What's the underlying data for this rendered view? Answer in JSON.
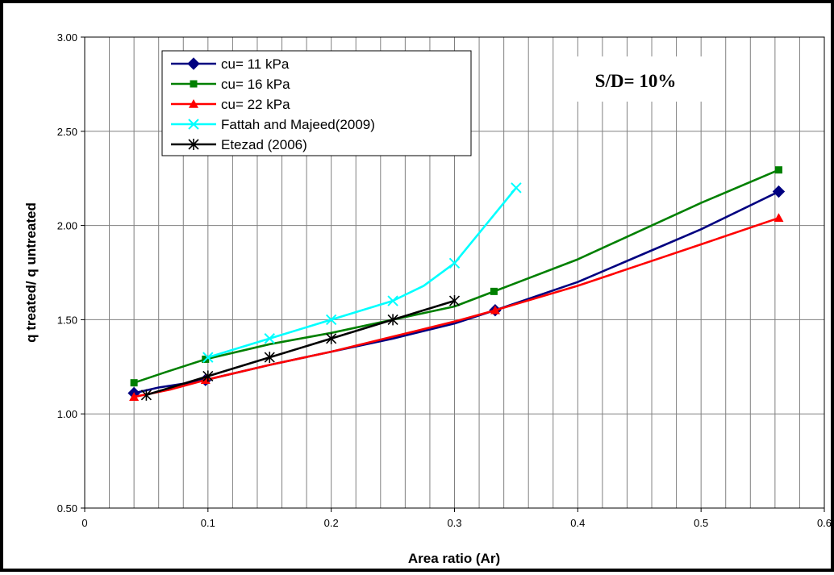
{
  "chart_data": {
    "type": "line",
    "title": "",
    "xlabel": "Area ratio (Ar)",
    "ylabel": "q treated/ q untreated",
    "xlim": [
      0,
      0.6
    ],
    "ylim": [
      0.5,
      3.0
    ],
    "x_ticks": [
      "0",
      "0.1",
      "0.2",
      "0.3",
      "0.4",
      "0.5",
      "0.6"
    ],
    "y_ticks": [
      "0.50",
      "1.00",
      "1.50",
      "2.00",
      "2.50",
      "3.00"
    ],
    "x_tick_values": [
      0,
      0.1,
      0.2,
      0.3,
      0.4,
      0.5,
      0.6
    ],
    "y_tick_values": [
      0.5,
      1.0,
      1.5,
      2.0,
      2.5,
      3.0
    ],
    "x_minor_step": 0.02,
    "grid": "on",
    "legend_position": "top-left",
    "annotation": "S/D= 10%",
    "series": [
      {
        "name": "cu= 11 kPa",
        "color": "#000080",
        "marker": "diamond",
        "points": [
          [
            0.04,
            1.11
          ],
          [
            0.098,
            1.18
          ],
          [
            0.333,
            1.55
          ],
          [
            0.563,
            2.18
          ]
        ],
        "curve": [
          [
            0.04,
            1.11
          ],
          [
            0.06,
            1.14
          ],
          [
            0.08,
            1.16
          ],
          [
            0.098,
            1.18
          ],
          [
            0.15,
            1.26
          ],
          [
            0.2,
            1.33
          ],
          [
            0.25,
            1.4
          ],
          [
            0.3,
            1.48
          ],
          [
            0.333,
            1.55
          ],
          [
            0.4,
            1.7
          ],
          [
            0.45,
            1.84
          ],
          [
            0.5,
            1.98
          ],
          [
            0.563,
            2.18
          ]
        ]
      },
      {
        "name": "cu= 16 kPa",
        "color": "#008000",
        "marker": "square",
        "points": [
          [
            0.04,
            1.165
          ],
          [
            0.098,
            1.29
          ],
          [
            0.332,
            1.65
          ],
          [
            0.563,
            2.295
          ]
        ],
        "curve": [
          [
            0.04,
            1.165
          ],
          [
            0.065,
            1.22
          ],
          [
            0.098,
            1.29
          ],
          [
            0.15,
            1.37
          ],
          [
            0.2,
            1.43
          ],
          [
            0.25,
            1.5
          ],
          [
            0.3,
            1.57
          ],
          [
            0.332,
            1.65
          ],
          [
            0.4,
            1.82
          ],
          [
            0.45,
            1.97
          ],
          [
            0.5,
            2.12
          ],
          [
            0.563,
            2.295
          ]
        ]
      },
      {
        "name": "cu= 22 kPa",
        "color": "#ff0000",
        "marker": "triangle",
        "points": [
          [
            0.04,
            1.09
          ],
          [
            0.098,
            1.18
          ],
          [
            0.333,
            1.55
          ],
          [
            0.563,
            2.04
          ]
        ],
        "curve": [
          [
            0.04,
            1.09
          ],
          [
            0.07,
            1.13
          ],
          [
            0.098,
            1.18
          ],
          [
            0.15,
            1.26
          ],
          [
            0.2,
            1.33
          ],
          [
            0.25,
            1.41
          ],
          [
            0.3,
            1.49
          ],
          [
            0.333,
            1.55
          ],
          [
            0.4,
            1.68
          ],
          [
            0.45,
            1.79
          ],
          [
            0.5,
            1.9
          ],
          [
            0.563,
            2.04
          ]
        ]
      },
      {
        "name": "Fattah and Majeed(2009)",
        "color": "#00ffff",
        "marker": "x",
        "points": [
          [
            0.1,
            1.3
          ],
          [
            0.15,
            1.4
          ],
          [
            0.2,
            1.5
          ],
          [
            0.25,
            1.6
          ],
          [
            0.3,
            1.8
          ],
          [
            0.35,
            2.2
          ]
        ],
        "curve": [
          [
            0.1,
            1.3
          ],
          [
            0.15,
            1.4
          ],
          [
            0.2,
            1.5
          ],
          [
            0.25,
            1.6
          ],
          [
            0.275,
            1.68
          ],
          [
            0.3,
            1.8
          ],
          [
            0.32,
            1.96
          ],
          [
            0.335,
            2.08
          ],
          [
            0.35,
            2.2
          ]
        ]
      },
      {
        "name": "Etezad (2006)",
        "color": "#000000",
        "marker": "star",
        "points": [
          [
            0.05,
            1.1
          ],
          [
            0.1,
            1.2
          ],
          [
            0.15,
            1.3
          ],
          [
            0.2,
            1.4
          ],
          [
            0.25,
            1.5
          ],
          [
            0.3,
            1.6
          ]
        ],
        "curve": [
          [
            0.05,
            1.1
          ],
          [
            0.1,
            1.2
          ],
          [
            0.15,
            1.3
          ],
          [
            0.2,
            1.4
          ],
          [
            0.25,
            1.5
          ],
          [
            0.3,
            1.6
          ]
        ]
      }
    ]
  }
}
